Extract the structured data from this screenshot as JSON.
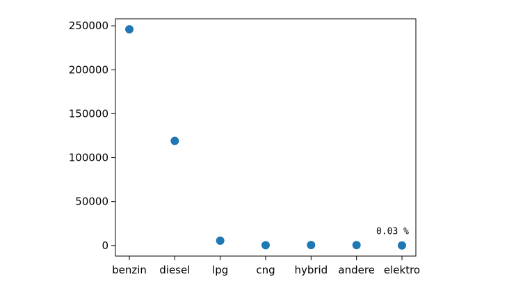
{
  "chart_data": {
    "type": "scatter",
    "title": "",
    "xlabel": "",
    "ylabel": "",
    "categories": [
      "benzin",
      "diesel",
      "lpg",
      "cng",
      "hybrid",
      "andere",
      "elektro"
    ],
    "values": [
      246000,
      119000,
      5500,
      400,
      600,
      500,
      80
    ],
    "ylim": [
      -12000,
      258000
    ],
    "yticks": [
      0,
      50000,
      100000,
      150000,
      200000,
      250000
    ],
    "ytick_labels": [
      "0",
      "50000",
      "100000",
      "150000",
      "200000",
      "250000"
    ],
    "grid": false,
    "legend": "none",
    "marker_color": "#1f77b4",
    "annotation": {
      "text": "0.03 %",
      "category": "elektro",
      "y": 17000
    }
  }
}
